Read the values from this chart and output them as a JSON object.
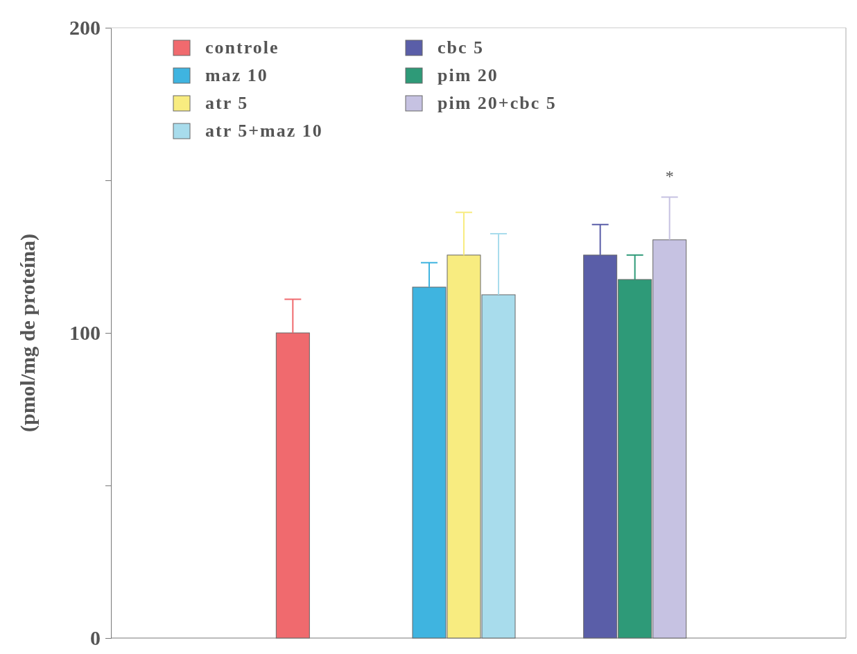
{
  "chart_data": {
    "type": "bar",
    "ylabel": "(pmol/mg de proteína)",
    "categories": [
      null,
      null,
      null
    ],
    "series": [
      {
        "name": "controle",
        "color": "#f06a6e",
        "values": [
          100,
          null,
          null
        ],
        "errors": [
          11,
          null,
          null
        ]
      },
      {
        "name": "maz 10",
        "color": "#3fb4e0",
        "values": [
          null,
          115,
          null
        ],
        "errors": [
          null,
          8,
          null
        ]
      },
      {
        "name": "atr 5",
        "color": "#f8ec80",
        "values": [
          null,
          125.5,
          null
        ],
        "errors": [
          null,
          14,
          null
        ]
      },
      {
        "name": "atr 5+maz 10",
        "color": "#a8dcec",
        "values": [
          null,
          112.5,
          null
        ],
        "errors": [
          null,
          20,
          null
        ]
      },
      {
        "name": "cbc 5",
        "color": "#5a5ea8",
        "values": [
          null,
          null,
          125.5
        ],
        "errors": [
          null,
          null,
          10
        ]
      },
      {
        "name": "pim 20",
        "color": "#2e9a78",
        "values": [
          null,
          null,
          117.5
        ],
        "errors": [
          null,
          null,
          8
        ]
      },
      {
        "name": "pim 20+cbc 5",
        "color": "#c6c2e2",
        "values": [
          null,
          null,
          130.5
        ],
        "errors": [
          null,
          null,
          14
        ]
      }
    ],
    "ylim": [
      0,
      200
    ],
    "yticks": [
      0,
      {
        "value": 50,
        "label": null
      },
      100,
      {
        "value": 150,
        "label": null
      },
      200
    ],
    "legend": "top left",
    "annotations": [
      "*"
    ]
  }
}
